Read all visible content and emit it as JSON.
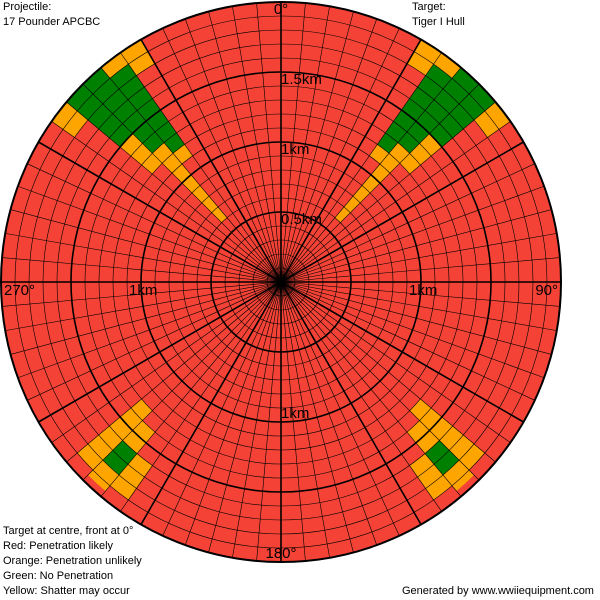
{
  "header": {
    "projectile_label": "Projectile:",
    "projectile_value": "17 Pounder APCBC",
    "target_label": "Target:",
    "target_value": "Tiger I Hull"
  },
  "legend": {
    "line1": "Target at centre, front at 0°",
    "line2": "Red: Penetration likely",
    "line3": "Orange: Penetration unlikely",
    "line4": "Green: No Penetration",
    "line5": "Yellow: Shatter may occur"
  },
  "footer": {
    "generated_by": "Generated by www.wwiiequipment.com"
  },
  "chart_data": {
    "type": "polar-heatmap",
    "max_range_km": 2.0,
    "ring_step_km": 0.1,
    "sector_step_deg": 5,
    "angle_labels": [
      {
        "text": "0°",
        "angle": 0
      },
      {
        "text": "90°",
        "angle": 90
      },
      {
        "text": "180°",
        "angle": 180
      },
      {
        "text": "270°",
        "angle": 270
      }
    ],
    "range_labels": [
      {
        "text": "1.5km",
        "angle": 0,
        "km": 1.5
      },
      {
        "text": "1km",
        "angle": 0,
        "km": 1.0
      },
      {
        "text": "0.5km",
        "angle": 0,
        "km": 0.5
      },
      {
        "text": "1km",
        "angle": 90,
        "km": 1.0
      },
      {
        "text": "1km",
        "angle": 180,
        "km": 1.0
      },
      {
        "text": "1km",
        "angle": 270,
        "km": 1.0
      }
    ],
    "colors": {
      "penetration_likely": "#f44336",
      "penetration_unlikely": "#ffa500",
      "no_penetration": "#008000",
      "shatter": "#ffff00",
      "grid": "#000000"
    },
    "default_zone": "penetration_likely",
    "zones": [
      {
        "from_deg": 30,
        "to_deg": 35,
        "min_km": 1.8,
        "max_km": 2.0,
        "zone": "penetration_unlikely"
      },
      {
        "from_deg": 35,
        "to_deg": 40,
        "min_km": 1.2,
        "max_km": 1.9,
        "zone": "no_penetration"
      },
      {
        "from_deg": 35,
        "to_deg": 40,
        "min_km": 1.1,
        "max_km": 1.2,
        "zone": "penetration_unlikely"
      },
      {
        "from_deg": 35,
        "to_deg": 40,
        "min_km": 1.9,
        "max_km": 2.0,
        "zone": "penetration_unlikely"
      },
      {
        "from_deg": 40,
        "to_deg": 45,
        "min_km": 1.3,
        "max_km": 2.0,
        "zone": "no_penetration"
      },
      {
        "from_deg": 40,
        "to_deg": 45,
        "min_km": 0.6,
        "max_km": 1.3,
        "zone": "penetration_unlikely"
      },
      {
        "from_deg": 45,
        "to_deg": 50,
        "min_km": 1.5,
        "max_km": 2.0,
        "zone": "no_penetration"
      },
      {
        "from_deg": 45,
        "to_deg": 50,
        "min_km": 1.2,
        "max_km": 1.5,
        "zone": "penetration_unlikely"
      },
      {
        "from_deg": 50,
        "to_deg": 55,
        "min_km": 1.8,
        "max_km": 2.0,
        "zone": "penetration_unlikely"
      },
      {
        "from_deg": 305,
        "to_deg": 310,
        "min_km": 1.8,
        "max_km": 2.0,
        "zone": "penetration_unlikely"
      },
      {
        "from_deg": 310,
        "to_deg": 315,
        "min_km": 1.5,
        "max_km": 2.0,
        "zone": "no_penetration"
      },
      {
        "from_deg": 310,
        "to_deg": 315,
        "min_km": 1.2,
        "max_km": 1.5,
        "zone": "penetration_unlikely"
      },
      {
        "from_deg": 315,
        "to_deg": 320,
        "min_km": 1.3,
        "max_km": 2.0,
        "zone": "no_penetration"
      },
      {
        "from_deg": 315,
        "to_deg": 320,
        "min_km": 0.6,
        "max_km": 1.3,
        "zone": "penetration_unlikely"
      },
      {
        "from_deg": 320,
        "to_deg": 325,
        "min_km": 1.2,
        "max_km": 1.9,
        "zone": "no_penetration"
      },
      {
        "from_deg": 320,
        "to_deg": 325,
        "min_km": 1.1,
        "max_km": 1.2,
        "zone": "penetration_unlikely"
      },
      {
        "from_deg": 320,
        "to_deg": 325,
        "min_km": 1.9,
        "max_km": 2.0,
        "zone": "penetration_unlikely"
      },
      {
        "from_deg": 325,
        "to_deg": 330,
        "min_km": 1.8,
        "max_km": 2.0,
        "zone": "penetration_unlikely"
      },
      {
        "from_deg": 130,
        "to_deg": 135,
        "min_km": 1.3,
        "max_km": 1.9,
        "zone": "penetration_unlikely"
      },
      {
        "from_deg": 135,
        "to_deg": 140,
        "min_km": 1.6,
        "max_km": 1.8,
        "zone": "no_penetration"
      },
      {
        "from_deg": 135,
        "to_deg": 140,
        "min_km": 1.4,
        "max_km": 1.6,
        "zone": "penetration_unlikely"
      },
      {
        "from_deg": 135,
        "to_deg": 140,
        "min_km": 1.8,
        "max_km": 1.95,
        "zone": "penetration_unlikely"
      },
      {
        "from_deg": 140,
        "to_deg": 145,
        "min_km": 1.6,
        "max_km": 1.9,
        "zone": "penetration_unlikely"
      },
      {
        "from_deg": 215,
        "to_deg": 220,
        "min_km": 1.6,
        "max_km": 1.9,
        "zone": "penetration_unlikely"
      },
      {
        "from_deg": 220,
        "to_deg": 225,
        "min_km": 1.6,
        "max_km": 1.8,
        "zone": "no_penetration"
      },
      {
        "from_deg": 220,
        "to_deg": 225,
        "min_km": 1.4,
        "max_km": 1.6,
        "zone": "penetration_unlikely"
      },
      {
        "from_deg": 220,
        "to_deg": 225,
        "min_km": 1.8,
        "max_km": 1.95,
        "zone": "penetration_unlikely"
      },
      {
        "from_deg": 225,
        "to_deg": 230,
        "min_km": 1.3,
        "max_km": 1.9,
        "zone": "penetration_unlikely"
      }
    ]
  }
}
